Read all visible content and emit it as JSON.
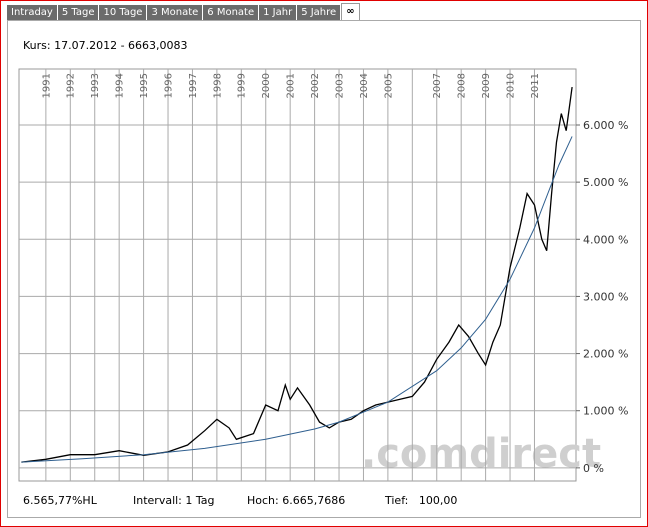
{
  "tabs": [
    "Intraday",
    "5 Tage",
    "10 Tage",
    "3 Monate",
    "6 Monate",
    "1 Jahr",
    "5 Jahre",
    "∞"
  ],
  "header": {
    "kurs": "Kurs: 17.07.2012 - 6663,0083"
  },
  "footer": {
    "hl": "6.565,77%HL",
    "interval": "Intervall: 1 Tag",
    "hoch": "Hoch: 6.665,7686",
    "tief": "Tief:   100,00"
  },
  "chart_data": {
    "type": "line",
    "watermark": ".comdirect",
    "xlim": [
      1989.9,
      2012.7
    ],
    "xticks": [
      1991,
      1992,
      1993,
      1994,
      1995,
      1996,
      1997,
      1998,
      1999,
      2000,
      2001,
      2002,
      2003,
      2004,
      2005,
      {
        "value": 2006,
        "label": null
      },
      2007,
      2008,
      2009,
      2010,
      2011
    ],
    "ylim": [
      -230,
      6980
    ],
    "yticks": [
      {
        "value": 0,
        "label": "0 %"
      },
      {
        "value": 1000,
        "label": "1.000 %"
      },
      {
        "value": 2000,
        "label": "2.000 %"
      },
      {
        "value": 3000,
        "label": "3.000 %"
      },
      {
        "value": 4000,
        "label": "4.000 %"
      },
      {
        "value": 5000,
        "label": "5.000 %"
      },
      {
        "value": 6000,
        "label": "6.000 %"
      }
    ],
    "grid": true,
    "series": [
      {
        "color": "#000000",
        "x": [
          1990.0,
          1991.0,
          1992.0,
          1993.0,
          1994.0,
          1995.0,
          1996.0,
          1996.8,
          1997.5,
          1998.0,
          1998.5,
          1998.8,
          1999.5,
          2000.0,
          2000.5,
          2000.8,
          2001.0,
          2001.3,
          2001.8,
          2002.2,
          2002.6,
          2003.0,
          2003.5,
          2004.0,
          2004.5,
          2005.0,
          2005.5,
          2006.0,
          2006.5,
          2007.0,
          2007.5,
          2007.9,
          2008.3,
          2008.7,
          2009.0,
          2009.3,
          2009.6,
          2010.0,
          2010.4,
          2010.7,
          2011.0,
          2011.3,
          2011.5,
          2011.7,
          2011.9,
          2012.1,
          2012.3,
          2012.54
        ],
        "values": [
          100,
          150,
          230,
          230,
          300,
          220,
          280,
          400,
          650,
          850,
          700,
          500,
          600,
          1100,
          1000,
          1450,
          1200,
          1400,
          1100,
          800,
          700,
          800,
          850,
          1000,
          1100,
          1150,
          1200,
          1250,
          1500,
          1900,
          2200,
          2500,
          2300,
          2000,
          1800,
          2200,
          2500,
          3500,
          4200,
          4800,
          4600,
          4000,
          3800,
          4800,
          5700,
          6200,
          5900,
          6663
        ]
      },
      {
        "color": "#2f5f8f",
        "x": [
          1990.0,
          1992.5,
          1995.0,
          1997.5,
          2000.0,
          2002.0,
          2003.0,
          2005.0,
          2007.0,
          2008.0,
          2009.0,
          2010.0,
          2011.0,
          2012.0,
          2012.54
        ],
        "values": [
          100,
          160,
          230,
          340,
          500,
          680,
          800,
          1150,
          1700,
          2100,
          2600,
          3300,
          4200,
          5300,
          5800
        ]
      }
    ]
  }
}
